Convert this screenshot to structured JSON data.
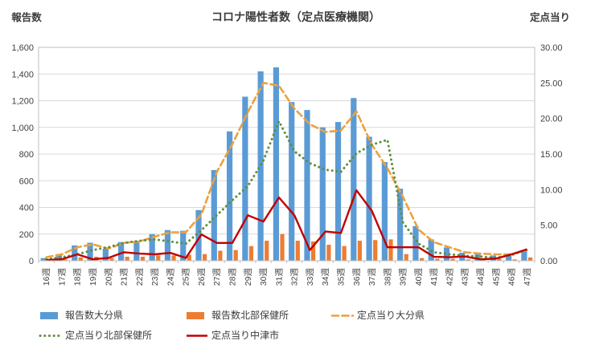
{
  "chart_data": {
    "type": "bar",
    "subtype": "combo-bar-line-dual-axis",
    "title": "コロナ陽性者数（定点医療機関）",
    "grid": true,
    "legend_position": "bottom",
    "left_axis": {
      "label": "報告数",
      "min": 0,
      "max": 1600,
      "tick_step": 200,
      "ticks": [
        "0",
        "200",
        "400",
        "600",
        "800",
        "1,000",
        "1,200",
        "1,400",
        "1,600"
      ]
    },
    "right_axis": {
      "label": "定点当り",
      "min": 0,
      "max": 30,
      "tick_step": 5,
      "ticks": [
        "0.00",
        "5.00",
        "10.00",
        "15.00",
        "20.00",
        "25.00",
        "30.00"
      ]
    },
    "categories": [
      "16週",
      "17週",
      "18週",
      "19週",
      "20週",
      "21週",
      "22週",
      "23週",
      "24週",
      "25週",
      "26週",
      "27週",
      "28週",
      "29週",
      "30週",
      "31週",
      "32週",
      "33週",
      "34週",
      "35週",
      "36週",
      "37週",
      "38週",
      "39週",
      "40週",
      "41週",
      "42週",
      "43週",
      "44週",
      "45週",
      "46週",
      "47週"
    ],
    "series": [
      {
        "name": "報告数大分県",
        "type": "bar",
        "axis": "left",
        "color": "#5B9BD5",
        "values": [
          20,
          50,
          115,
          135,
          90,
          140,
          150,
          200,
          230,
          225,
          380,
          680,
          970,
          1230,
          1420,
          1450,
          1190,
          1130,
          1000,
          1040,
          1220,
          930,
          740,
          540,
          260,
          160,
          100,
          60,
          50,
          40,
          40,
          80
        ]
      },
      {
        "name": "報告数北部保健所",
        "type": "bar",
        "axis": "left",
        "color": "#ED7D31",
        "values": [
          5,
          10,
          25,
          30,
          20,
          30,
          30,
          40,
          40,
          45,
          50,
          75,
          80,
          110,
          150,
          200,
          150,
          145,
          120,
          110,
          150,
          155,
          160,
          50,
          20,
          15,
          15,
          10,
          10,
          15,
          10,
          25
        ]
      },
      {
        "name": "定点当り大分県",
        "type": "line",
        "style": "dashed",
        "axis": "right",
        "color": "#EDA13C",
        "values": [
          0.5,
          0.9,
          1.9,
          2.3,
          1.7,
          2.5,
          2.7,
          3.4,
          4.0,
          4.0,
          6.5,
          12.5,
          16.4,
          20.9,
          25.0,
          24.6,
          21.4,
          19.2,
          18.1,
          18.3,
          21.0,
          16.3,
          13.0,
          9.0,
          4.4,
          2.6,
          1.9,
          1.2,
          1.0,
          0.9,
          0.9,
          1.5
        ]
      },
      {
        "name": "定点当り北部保健所",
        "type": "line",
        "style": "dotted",
        "axis": "right",
        "color": "#5E8F3A",
        "values": [
          0.2,
          0.5,
          0.9,
          1.5,
          1.9,
          2.5,
          2.8,
          3.0,
          2.7,
          2.4,
          4.3,
          6.4,
          8.5,
          10.5,
          14.1,
          19.6,
          15.4,
          13.7,
          12.8,
          12.5,
          15.1,
          16.3,
          17.0,
          5.4,
          2.4,
          1.2,
          0.9,
          0.7,
          0.6,
          0.4,
          0.8,
          1.6
        ]
      },
      {
        "name": "定点当り中津市",
        "type": "line",
        "style": "solid",
        "axis": "right",
        "color": "#C00000",
        "values": [
          0.1,
          0.2,
          0.9,
          0.2,
          0.4,
          1.2,
          1.0,
          0.9,
          1.1,
          0.4,
          3.7,
          2.5,
          2.5,
          6.4,
          5.5,
          8.9,
          6.4,
          1.5,
          4.1,
          3.9,
          9.9,
          7.0,
          1.9,
          1.9,
          1.9,
          0.55,
          0.5,
          0.6,
          0.2,
          0.3,
          0.9,
          1.6
        ]
      }
    ]
  }
}
